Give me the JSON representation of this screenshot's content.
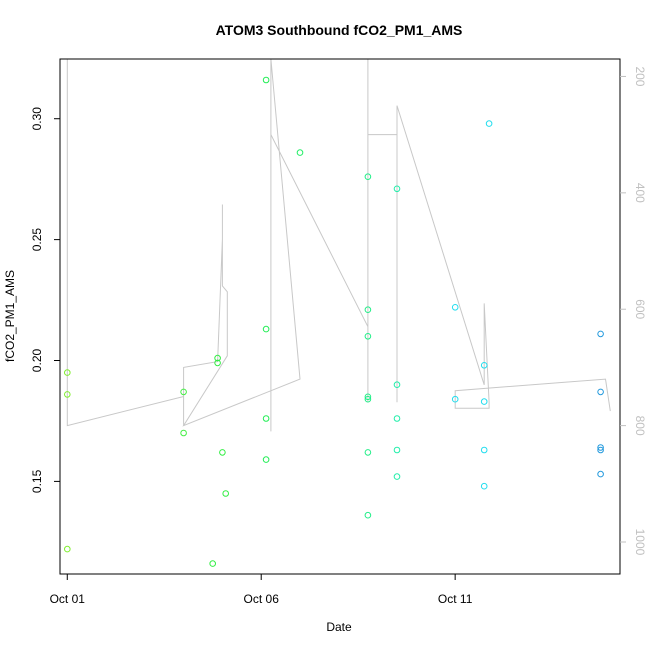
{
  "chart_data": {
    "type": "scatter",
    "title": "ATOM3 Southbound fCO2_PM1_AMS",
    "xlabel": "Date",
    "ylabel": "fCO2_PM1_AMS",
    "x_ticks": [
      "Oct 01",
      "Oct 06",
      "Oct 11"
    ],
    "y_ticks": [
      "0.15",
      "0.20",
      "0.25",
      "0.30"
    ],
    "y2_ticks": [
      "200",
      "400",
      "600",
      "800",
      "1000"
    ],
    "xlim": [
      "Sep 30 19:30",
      "Oct 15 06:00"
    ],
    "ylim": [
      0.1117,
      0.3247
    ],
    "y2lim": [
      1055,
      170
    ],
    "y2_reversed": true,
    "grid": false,
    "points_colormap": "green to blue over time",
    "line_color": "#c8c8c8",
    "points": [
      {
        "x": "Oct 01 00:00",
        "y": 0.195,
        "color": "#80ee30"
      },
      {
        "x": "Oct 01 00:00",
        "y": 0.186,
        "color": "#80ee30"
      },
      {
        "x": "Oct 01 00:00",
        "y": 0.122,
        "color": "#80ee30"
      },
      {
        "x": "Oct 04 00:00",
        "y": 0.187,
        "color": "#44ee44"
      },
      {
        "x": "Oct 04 00:00",
        "y": 0.17,
        "color": "#44ee44"
      },
      {
        "x": "Oct 04 18:00",
        "y": 0.116,
        "color": "#33ee44"
      },
      {
        "x": "Oct 04 21:00",
        "y": 0.201,
        "color": "#33ee44"
      },
      {
        "x": "Oct 04 21:00",
        "y": 0.199,
        "color": "#33ee44"
      },
      {
        "x": "Oct 05 00:00",
        "y": 0.162,
        "color": "#33ee44"
      },
      {
        "x": "Oct 05 02:00",
        "y": 0.145,
        "color": "#33ee44"
      },
      {
        "x": "Oct 06 03:00",
        "y": 0.316,
        "color": "#22ee55"
      },
      {
        "x": "Oct 06 03:00",
        "y": 0.213,
        "color": "#22ee55"
      },
      {
        "x": "Oct 06 03:00",
        "y": 0.176,
        "color": "#22ee55"
      },
      {
        "x": "Oct 06 03:00",
        "y": 0.159,
        "color": "#22ee55"
      },
      {
        "x": "Oct 07 00:00",
        "y": 0.286,
        "color": "#22ee66"
      },
      {
        "x": "Oct 08 18:00",
        "y": 0.276,
        "color": "#22ee88"
      },
      {
        "x": "Oct 08 18:00",
        "y": 0.221,
        "color": "#22ee88"
      },
      {
        "x": "Oct 08 18:00",
        "y": 0.21,
        "color": "#22ee88"
      },
      {
        "x": "Oct 08 18:00",
        "y": 0.185,
        "color": "#22ee88"
      },
      {
        "x": "Oct 08 18:00",
        "y": 0.184,
        "color": "#22ee88"
      },
      {
        "x": "Oct 08 18:00",
        "y": 0.162,
        "color": "#22ee88"
      },
      {
        "x": "Oct 08 18:00",
        "y": 0.136,
        "color": "#22ee88"
      },
      {
        "x": "Oct 09 12:00",
        "y": 0.271,
        "color": "#22eeaa"
      },
      {
        "x": "Oct 09 12:00",
        "y": 0.19,
        "color": "#22eeaa"
      },
      {
        "x": "Oct 09 12:00",
        "y": 0.176,
        "color": "#22eeaa"
      },
      {
        "x": "Oct 09 12:00",
        "y": 0.163,
        "color": "#22eeaa"
      },
      {
        "x": "Oct 09 12:00",
        "y": 0.152,
        "color": "#22eeaa"
      },
      {
        "x": "Oct 11 00:00",
        "y": 0.222,
        "color": "#22ddee"
      },
      {
        "x": "Oct 11 00:00",
        "y": 0.184,
        "color": "#22ddee"
      },
      {
        "x": "Oct 11 18:00",
        "y": 0.198,
        "color": "#22ddee"
      },
      {
        "x": "Oct 11 18:00",
        "y": 0.183,
        "color": "#22ddee"
      },
      {
        "x": "Oct 11 18:00",
        "y": 0.163,
        "color": "#22ddee"
      },
      {
        "x": "Oct 11 18:00",
        "y": 0.148,
        "color": "#22ddee"
      },
      {
        "x": "Oct 11 21:00",
        "y": 0.298,
        "color": "#22ddee"
      },
      {
        "x": "Oct 14 18:00",
        "y": 0.211,
        "color": "#2299dd"
      },
      {
        "x": "Oct 14 18:00",
        "y": 0.187,
        "color": "#2299dd"
      },
      {
        "x": "Oct 14 18:00",
        "y": 0.164,
        "color": "#2299dd"
      },
      {
        "x": "Oct 14 18:00",
        "y": 0.163,
        "color": "#2299dd"
      },
      {
        "x": "Oct 14 18:00",
        "y": 0.153,
        "color": "#2299dd"
      }
    ],
    "line_y2_series": [
      {
        "x": "Oct 01 00:00",
        "y2": 100
      },
      {
        "x": "Oct 01 00:00",
        "y2": 800
      },
      {
        "x": "Oct 04 00:00",
        "y2": 750
      },
      {
        "x": "Oct 04 00:00",
        "y2": 800
      },
      {
        "x": "Oct 04 00:00",
        "y2": 700
      },
      {
        "x": "Oct 04 21:00",
        "y2": 690
      },
      {
        "x": "Oct 05 00:00",
        "y2": 480
      },
      {
        "x": "Oct 05 00:00",
        "y2": 420
      },
      {
        "x": "Oct 05 00:00",
        "y2": 560
      },
      {
        "x": "Oct 05 03:00",
        "y2": 570
      },
      {
        "x": "Oct 05 03:00",
        "y2": 680
      },
      {
        "x": "Oct 04 00:00",
        "y2": 800
      },
      {
        "x": "Oct 07 00:00",
        "y2": 720
      },
      {
        "x": "Oct 06 06:00",
        "y2": 100
      },
      {
        "x": "Oct 06 06:00",
        "y2": 810
      },
      {
        "x": "Oct 06 06:00",
        "y2": 300
      },
      {
        "x": "Oct 08 18:00",
        "y2": 630
      },
      {
        "x": "Oct 08 18:00",
        "y2": 760
      },
      {
        "x": "Oct 08 18:00",
        "y2": 170
      },
      {
        "x": "Oct 08 18:00",
        "y2": 700
      },
      {
        "x": "Oct 08 18:00",
        "y2": 300
      },
      {
        "x": "Oct 09 12:00",
        "y2": 300
      },
      {
        "x": "Oct 09 12:00",
        "y2": 760
      },
      {
        "x": "Oct 09 12:00",
        "y2": 250
      },
      {
        "x": "Oct 11 18:00",
        "y2": 730
      },
      {
        "x": "Oct 11 18:00",
        "y2": 590
      },
      {
        "x": "Oct 11 21:00",
        "y2": 760
      },
      {
        "x": "Oct 11 21:00",
        "y2": 770
      },
      {
        "x": "Oct 11 00:00",
        "y2": 770
      },
      {
        "x": "Oct 11 00:00",
        "y2": 740
      },
      {
        "x": "Oct 14 21:00",
        "y2": 720
      },
      {
        "x": "Oct 15 00:00",
        "y2": 775
      }
    ]
  }
}
